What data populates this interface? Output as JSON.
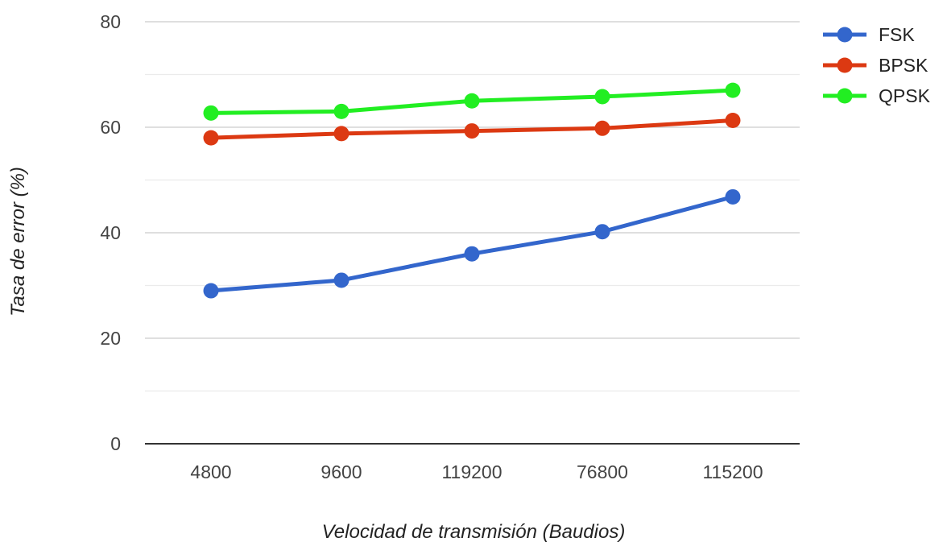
{
  "chart_data": {
    "type": "line",
    "title": "",
    "xlabel": "Velocidad de transmisión (Baudios)",
    "ylabel": "Tasa de error (%)",
    "categories": [
      "4800",
      "9600",
      "119200",
      "76800",
      "115200"
    ],
    "ylim": [
      0,
      80
    ],
    "yticks": [
      "0",
      "20",
      "40",
      "60",
      "80"
    ],
    "grid": true,
    "legend": "right",
    "series": [
      {
        "name": "FSK",
        "color": "#3366cc",
        "values": [
          29,
          31,
          36,
          40.2,
          46.8
        ]
      },
      {
        "name": "BPSK",
        "color": "#dc3912",
        "values": [
          58,
          58.8,
          59.3,
          59.8,
          61.3
        ]
      },
      {
        "name": "QPSK",
        "color": "#22ee22",
        "values": [
          62.7,
          63,
          65,
          65.8,
          67
        ]
      }
    ]
  }
}
